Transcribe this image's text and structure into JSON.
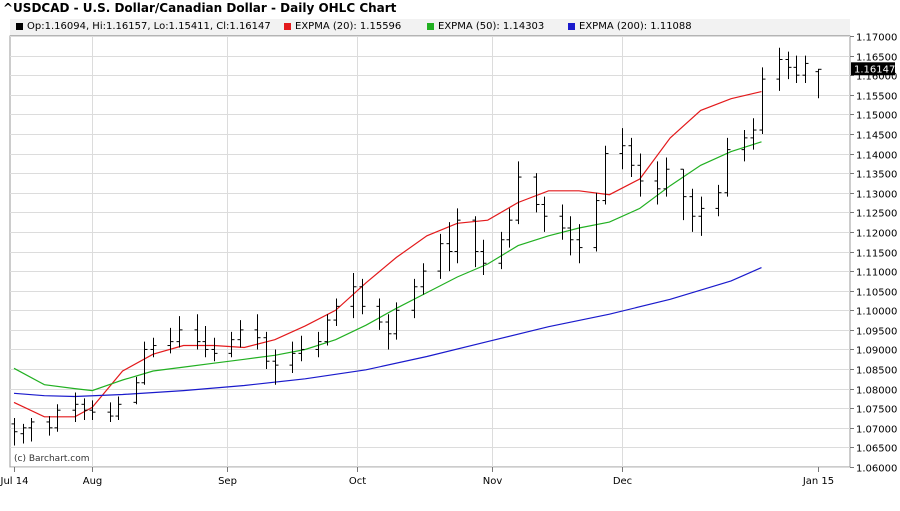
{
  "header": {
    "title": "^USDCAD - U.S. Dollar/Canadian Dollar - Daily OHLC Chart"
  },
  "legend": {
    "ohlc": {
      "label": "Op:1.16094, Hi:1.16157, Lo:1.15411, Cl:1.16147",
      "color": "#000000"
    },
    "ema20": {
      "label": "EXPMA (20): 1.15596",
      "color": "#e31a1c"
    },
    "ema50": {
      "label": "EXPMA (50): 1.14303",
      "color": "#22b022"
    },
    "ema200": {
      "label": "EXPMA (200): 1.11088",
      "color": "#1a1acc"
    }
  },
  "watermark": "(c) Barchart.com",
  "last_price_label": "1.16147",
  "chart_data": {
    "type": "ohlc",
    "x_tick_labels": [
      "Jul 14",
      "Aug",
      "Sep",
      "Oct",
      "Nov",
      "Dec",
      "Jan 15"
    ],
    "y_tick_labels": [
      "1.17000",
      "1.16500",
      "1.16000",
      "1.15500",
      "1.15000",
      "1.14500",
      "1.14000",
      "1.13500",
      "1.13000",
      "1.12500",
      "1.12000",
      "1.11500",
      "1.11000",
      "1.10500",
      "1.10000",
      "1.09500",
      "1.09000",
      "1.08500",
      "1.08000",
      "1.07500",
      "1.07000",
      "1.06500",
      "1.06000"
    ],
    "ylim": [
      1.06,
      1.17
    ],
    "x_range": [
      "2014-07-14",
      "2015-01-15"
    ],
    "grid": true,
    "series": [
      {
        "name": "EXPMA (20)",
        "color": "#e31a1c",
        "points": [
          [
            "2014-07-14",
            1.0765
          ],
          [
            "2014-07-21",
            1.0728
          ],
          [
            "2014-07-28",
            1.0728
          ],
          [
            "2014-08-01",
            1.0752
          ],
          [
            "2014-08-08",
            1.0845
          ],
          [
            "2014-08-15",
            1.0888
          ],
          [
            "2014-08-22",
            1.091
          ],
          [
            "2014-08-29",
            1.091
          ],
          [
            "2014-09-05",
            1.0905
          ],
          [
            "2014-09-12",
            1.0925
          ],
          [
            "2014-09-19",
            1.096
          ],
          [
            "2014-09-26",
            1.1
          ],
          [
            "2014-10-03",
            1.107
          ],
          [
            "2014-10-10",
            1.1135
          ],
          [
            "2014-10-17",
            1.119
          ],
          [
            "2014-10-24",
            1.1222
          ],
          [
            "2014-10-31",
            1.123
          ],
          [
            "2014-11-07",
            1.1275
          ],
          [
            "2014-11-14",
            1.1305
          ],
          [
            "2014-11-21",
            1.1305
          ],
          [
            "2014-11-28",
            1.1295
          ],
          [
            "2014-12-05",
            1.1335
          ],
          [
            "2014-12-12",
            1.144
          ],
          [
            "2014-12-19",
            1.151
          ],
          [
            "2014-12-26",
            1.154
          ],
          [
            "2015-01-02",
            1.1558
          ]
        ]
      },
      {
        "name": "EXPMA (50)",
        "color": "#22b022",
        "points": [
          [
            "2014-07-14",
            1.0852
          ],
          [
            "2014-07-21",
            1.081
          ],
          [
            "2014-07-28",
            1.08
          ],
          [
            "2014-08-01",
            1.0795
          ],
          [
            "2014-08-08",
            1.0822
          ],
          [
            "2014-08-15",
            1.0845
          ],
          [
            "2014-08-22",
            1.0855
          ],
          [
            "2014-08-29",
            1.0865
          ],
          [
            "2014-09-05",
            1.0875
          ],
          [
            "2014-09-12",
            1.0885
          ],
          [
            "2014-09-19",
            1.09
          ],
          [
            "2014-09-26",
            1.0925
          ],
          [
            "2014-10-03",
            1.0962
          ],
          [
            "2014-10-10",
            1.1005
          ],
          [
            "2014-10-17",
            1.1045
          ],
          [
            "2014-10-24",
            1.1085
          ],
          [
            "2014-10-31",
            1.1118
          ],
          [
            "2014-11-07",
            1.1165
          ],
          [
            "2014-11-14",
            1.119
          ],
          [
            "2014-11-21",
            1.121
          ],
          [
            "2014-11-28",
            1.1225
          ],
          [
            "2014-12-05",
            1.126
          ],
          [
            "2014-12-12",
            1.1318
          ],
          [
            "2014-12-19",
            1.137
          ],
          [
            "2014-12-26",
            1.1405
          ],
          [
            "2015-01-02",
            1.143
          ]
        ]
      },
      {
        "name": "EXPMA (200)",
        "color": "#1a1acc",
        "points": [
          [
            "2014-07-14",
            1.0788
          ],
          [
            "2014-07-21",
            1.0782
          ],
          [
            "2014-07-28",
            1.078
          ],
          [
            "2014-08-08",
            1.0785
          ],
          [
            "2014-08-22",
            1.0795
          ],
          [
            "2014-09-05",
            1.0808
          ],
          [
            "2014-09-19",
            1.0825
          ],
          [
            "2014-10-03",
            1.0848
          ],
          [
            "2014-10-17",
            1.0882
          ],
          [
            "2014-10-31",
            1.092
          ],
          [
            "2014-11-14",
            1.0958
          ],
          [
            "2014-11-28",
            1.099
          ],
          [
            "2014-12-12",
            1.1028
          ],
          [
            "2014-12-26",
            1.1075
          ],
          [
            "2015-01-02",
            1.1109
          ]
        ]
      }
    ],
    "ohlc": [
      {
        "d": "2014-07-14",
        "o": 1.071,
        "h": 1.0725,
        "l": 1.0655,
        "c": 1.069
      },
      {
        "d": "2014-07-16",
        "o": 1.0685,
        "h": 1.071,
        "l": 1.066,
        "c": 1.07
      },
      {
        "d": "2014-07-18",
        "o": 1.07,
        "h": 1.0725,
        "l": 1.0665,
        "c": 1.0715
      },
      {
        "d": "2014-07-22",
        "o": 1.0715,
        "h": 1.073,
        "l": 1.068,
        "c": 1.07
      },
      {
        "d": "2014-07-24",
        "o": 1.07,
        "h": 1.076,
        "l": 1.069,
        "c": 1.0745
      },
      {
        "d": "2014-07-28",
        "o": 1.0745,
        "h": 1.079,
        "l": 1.0715,
        "c": 1.076
      },
      {
        "d": "2014-07-30",
        "o": 1.076,
        "h": 1.0775,
        "l": 1.072,
        "c": 1.0745
      },
      {
        "d": "2014-08-01",
        "o": 1.0745,
        "h": 1.077,
        "l": 1.072,
        "c": 1.074
      },
      {
        "d": "2014-08-05",
        "o": 1.074,
        "h": 1.0765,
        "l": 1.0715,
        "c": 1.073
      },
      {
        "d": "2014-08-07",
        "o": 1.073,
        "h": 1.078,
        "l": 1.072,
        "c": 1.076
      },
      {
        "d": "2014-08-11",
        "o": 1.0765,
        "h": 1.083,
        "l": 1.076,
        "c": 1.0815
      },
      {
        "d": "2014-08-13",
        "o": 1.0815,
        "h": 1.092,
        "l": 1.081,
        "c": 1.09
      },
      {
        "d": "2014-08-15",
        "o": 1.09,
        "h": 1.093,
        "l": 1.088,
        "c": 1.091
      },
      {
        "d": "2014-08-19",
        "o": 1.091,
        "h": 1.0955,
        "l": 1.089,
        "c": 1.092
      },
      {
        "d": "2014-08-21",
        "o": 1.092,
        "h": 1.0985,
        "l": 1.0905,
        "c": 1.095
      },
      {
        "d": "2014-08-25",
        "o": 1.095,
        "h": 1.099,
        "l": 1.09,
        "c": 1.092
      },
      {
        "d": "2014-08-27",
        "o": 1.092,
        "h": 1.096,
        "l": 1.088,
        "c": 1.09
      },
      {
        "d": "2014-08-29",
        "o": 1.09,
        "h": 1.093,
        "l": 1.087,
        "c": 1.089
      },
      {
        "d": "2014-09-02",
        "o": 1.089,
        "h": 1.0945,
        "l": 1.088,
        "c": 1.0925
      },
      {
        "d": "2014-09-04",
        "o": 1.0925,
        "h": 1.0975,
        "l": 1.0905,
        "c": 1.095
      },
      {
        "d": "2014-09-08",
        "o": 1.095,
        "h": 1.099,
        "l": 1.09,
        "c": 1.093
      },
      {
        "d": "2014-09-10",
        "o": 1.093,
        "h": 1.0945,
        "l": 1.085,
        "c": 1.087
      },
      {
        "d": "2014-09-12",
        "o": 1.087,
        "h": 1.09,
        "l": 1.081,
        "c": 1.086
      },
      {
        "d": "2014-09-16",
        "o": 1.086,
        "h": 1.092,
        "l": 1.084,
        "c": 1.089
      },
      {
        "d": "2014-09-18",
        "o": 1.089,
        "h": 1.0935,
        "l": 1.087,
        "c": 1.09
      },
      {
        "d": "2014-09-22",
        "o": 1.09,
        "h": 1.0945,
        "l": 1.088,
        "c": 1.092
      },
      {
        "d": "2014-09-24",
        "o": 1.092,
        "h": 1.099,
        "l": 1.091,
        "c": 1.0975
      },
      {
        "d": "2014-09-26",
        "o": 1.0975,
        "h": 1.103,
        "l": 1.096,
        "c": 1.101
      },
      {
        "d": "2014-09-30",
        "o": 1.101,
        "h": 1.1095,
        "l": 1.098,
        "c": 1.106
      },
      {
        "d": "2014-10-02",
        "o": 1.106,
        "h": 1.108,
        "l": 1.099,
        "c": 1.101
      },
      {
        "d": "2014-10-06",
        "o": 1.101,
        "h": 1.103,
        "l": 1.095,
        "c": 1.097
      },
      {
        "d": "2014-10-08",
        "o": 1.097,
        "h": 1.099,
        "l": 1.09,
        "c": 1.094
      },
      {
        "d": "2014-10-10",
        "o": 1.094,
        "h": 1.102,
        "l": 1.0925,
        "c": 1.1
      },
      {
        "d": "2014-10-14",
        "o": 1.1,
        "h": 1.108,
        "l": 1.098,
        "c": 1.106
      },
      {
        "d": "2014-10-16",
        "o": 1.106,
        "h": 1.112,
        "l": 1.104,
        "c": 1.11
      },
      {
        "d": "2014-10-20",
        "o": 1.11,
        "h": 1.1195,
        "l": 1.108,
        "c": 1.117
      },
      {
        "d": "2014-10-22",
        "o": 1.117,
        "h": 1.1225,
        "l": 1.11,
        "c": 1.115
      },
      {
        "d": "2014-10-24",
        "o": 1.115,
        "h": 1.126,
        "l": 1.112,
        "c": 1.123
      },
      {
        "d": "2014-10-28",
        "o": 1.123,
        "h": 1.124,
        "l": 1.111,
        "c": 1.115
      },
      {
        "d": "2014-10-30",
        "o": 1.115,
        "h": 1.118,
        "l": 1.109,
        "c": 1.112
      },
      {
        "d": "2014-11-03",
        "o": 1.112,
        "h": 1.12,
        "l": 1.1105,
        "c": 1.118
      },
      {
        "d": "2014-11-05",
        "o": 1.118,
        "h": 1.126,
        "l": 1.116,
        "c": 1.123
      },
      {
        "d": "2014-11-07",
        "o": 1.123,
        "h": 1.138,
        "l": 1.122,
        "c": 1.134
      },
      {
        "d": "2014-11-11",
        "o": 1.134,
        "h": 1.135,
        "l": 1.125,
        "c": 1.127
      },
      {
        "d": "2014-11-13",
        "o": 1.127,
        "h": 1.129,
        "l": 1.12,
        "c": 1.124
      },
      {
        "d": "2014-11-17",
        "o": 1.124,
        "h": 1.127,
        "l": 1.118,
        "c": 1.121
      },
      {
        "d": "2014-11-19",
        "o": 1.121,
        "h": 1.124,
        "l": 1.114,
        "c": 1.118
      },
      {
        "d": "2014-11-21",
        "o": 1.118,
        "h": 1.122,
        "l": 1.112,
        "c": 1.116
      },
      {
        "d": "2014-11-25",
        "o": 1.116,
        "h": 1.13,
        "l": 1.115,
        "c": 1.128
      },
      {
        "d": "2014-11-27",
        "o": 1.128,
        "h": 1.142,
        "l": 1.127,
        "c": 1.14
      },
      {
        "d": "2014-12-01",
        "o": 1.14,
        "h": 1.1465,
        "l": 1.136,
        "c": 1.142
      },
      {
        "d": "2014-12-03",
        "o": 1.142,
        "h": 1.144,
        "l": 1.134,
        "c": 1.137
      },
      {
        "d": "2014-12-05",
        "o": 1.137,
        "h": 1.14,
        "l": 1.129,
        "c": 1.133
      },
      {
        "d": "2014-12-09",
        "o": 1.133,
        "h": 1.138,
        "l": 1.127,
        "c": 1.131
      },
      {
        "d": "2014-12-11",
        "o": 1.131,
        "h": 1.139,
        "l": 1.129,
        "c": 1.136
      },
      {
        "d": "2014-12-15",
        "o": 1.136,
        "h": 1.136,
        "l": 1.123,
        "c": 1.129
      },
      {
        "d": "2014-12-17",
        "o": 1.129,
        "h": 1.131,
        "l": 1.12,
        "c": 1.124
      },
      {
        "d": "2014-12-19",
        "o": 1.124,
        "h": 1.129,
        "l": 1.119,
        "c": 1.126
      },
      {
        "d": "2014-12-23",
        "o": 1.126,
        "h": 1.132,
        "l": 1.124,
        "c": 1.13
      },
      {
        "d": "2014-12-25",
        "o": 1.13,
        "h": 1.144,
        "l": 1.129,
        "c": 1.141
      },
      {
        "d": "2014-12-29",
        "o": 1.141,
        "h": 1.146,
        "l": 1.138,
        "c": 1.144
      },
      {
        "d": "2014-12-31",
        "o": 1.144,
        "h": 1.149,
        "l": 1.141,
        "c": 1.146
      },
      {
        "d": "2015-01-02",
        "o": 1.146,
        "h": 1.162,
        "l": 1.145,
        "c": 1.159
      },
      {
        "d": "2015-01-06",
        "o": 1.159,
        "h": 1.167,
        "l": 1.156,
        "c": 1.164
      },
      {
        "d": "2015-01-08",
        "o": 1.164,
        "h": 1.166,
        "l": 1.159,
        "c": 1.162
      },
      {
        "d": "2015-01-10",
        "o": 1.162,
        "h": 1.165,
        "l": 1.158,
        "c": 1.16
      },
      {
        "d": "2015-01-12",
        "o": 1.16,
        "h": 1.165,
        "l": 1.158,
        "c": 1.163
      },
      {
        "d": "2015-01-15",
        "o": 1.1609,
        "h": 1.1616,
        "l": 1.1541,
        "c": 1.1615
      }
    ]
  }
}
